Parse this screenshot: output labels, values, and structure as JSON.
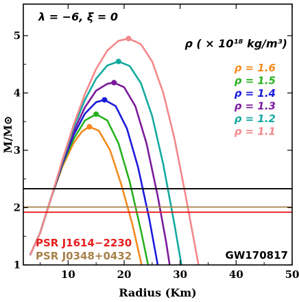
{
  "chart_data": {
    "type": "line",
    "title": "",
    "xlabel": "Radius (Km)",
    "ylabel": "M/M⊙",
    "xlim": [
      2,
      50
    ],
    "ylim": [
      1,
      5.55
    ],
    "x_ticks": [
      10,
      20,
      30,
      40,
      50
    ],
    "y_ticks": [
      1,
      2,
      3,
      4,
      5
    ],
    "parameter_label": "λ = −6, ξ = 0",
    "legend_title": "ρ ( × 10¹⁸ kg/m³)",
    "legend_position": "top-right",
    "series": [
      {
        "name": "ρ = 1.6",
        "color": "#f5891e",
        "max_point": [
          13.8,
          3.41
        ],
        "curve": [
          [
            3.2,
            1.17
          ],
          [
            5.0,
            1.56
          ],
          [
            7.0,
            2.18
          ],
          [
            9.0,
            2.72
          ],
          [
            11.0,
            3.13
          ],
          [
            12.5,
            3.33
          ],
          [
            13.8,
            3.41
          ],
          [
            15.5,
            3.34
          ],
          [
            17.5,
            3.0
          ],
          [
            19.5,
            2.4
          ],
          [
            21.5,
            1.7
          ],
          [
            23.0,
            1.05
          ],
          [
            23.7,
            0.75
          ]
        ]
      },
      {
        "name": "ρ = 1.5",
        "color": "#27b11d",
        "max_point": [
          15.0,
          3.63
        ],
        "curve": [
          [
            3.2,
            1.17
          ],
          [
            5.0,
            1.56
          ],
          [
            7.0,
            2.18
          ],
          [
            9.0,
            2.75
          ],
          [
            11.0,
            3.2
          ],
          [
            13.0,
            3.52
          ],
          [
            15.0,
            3.63
          ],
          [
            17.0,
            3.52
          ],
          [
            19.0,
            3.12
          ],
          [
            21.0,
            2.45
          ],
          [
            23.0,
            1.6
          ],
          [
            24.5,
            0.9
          ],
          [
            25.0,
            0.7
          ]
        ]
      },
      {
        "name": "ρ = 1.4",
        "color": "#1a1adb",
        "max_point": [
          16.5,
          3.88
        ],
        "curve": [
          [
            3.2,
            1.17
          ],
          [
            5.0,
            1.56
          ],
          [
            7.0,
            2.18
          ],
          [
            9.0,
            2.77
          ],
          [
            11.0,
            3.27
          ],
          [
            13.0,
            3.64
          ],
          [
            15.0,
            3.84
          ],
          [
            16.5,
            3.88
          ],
          [
            18.5,
            3.77
          ],
          [
            20.5,
            3.38
          ],
          [
            22.5,
            2.7
          ],
          [
            24.5,
            1.8
          ],
          [
            26.0,
            1.0
          ],
          [
            26.6,
            0.7
          ]
        ]
      },
      {
        "name": "ρ = 1.3",
        "color": "#7b1a9b",
        "max_point": [
          18.2,
          4.18
        ],
        "curve": [
          [
            3.2,
            1.17
          ],
          [
            5.0,
            1.56
          ],
          [
            7.0,
            2.18
          ],
          [
            9.0,
            2.8
          ],
          [
            11.0,
            3.33
          ],
          [
            13.0,
            3.75
          ],
          [
            15.0,
            4.04
          ],
          [
            17.0,
            4.16
          ],
          [
            18.2,
            4.18
          ],
          [
            20.0,
            4.1
          ],
          [
            22.0,
            3.77
          ],
          [
            24.0,
            3.12
          ],
          [
            26.0,
            2.2
          ],
          [
            27.5,
            1.4
          ],
          [
            28.6,
            0.7
          ]
        ]
      },
      {
        "name": "ρ = 1.2",
        "color": "#12a9a0",
        "max_point": [
          19.0,
          4.55
        ],
        "curve": [
          [
            3.2,
            1.17
          ],
          [
            5.0,
            1.56
          ],
          [
            7.0,
            2.18
          ],
          [
            9.0,
            2.82
          ],
          [
            11.0,
            3.4
          ],
          [
            13.0,
            3.88
          ],
          [
            15.0,
            4.25
          ],
          [
            17.0,
            4.48
          ],
          [
            19.0,
            4.55
          ],
          [
            21.0,
            4.47
          ],
          [
            23.0,
            4.17
          ],
          [
            25.0,
            3.6
          ],
          [
            27.0,
            2.75
          ],
          [
            29.0,
            1.7
          ],
          [
            30.5,
            0.85
          ],
          [
            30.8,
            0.7
          ]
        ]
      },
      {
        "name": "ρ = 1.1",
        "color": "#f4878a",
        "max_point": [
          20.8,
          4.95
        ],
        "curve": [
          [
            3.2,
            1.17
          ],
          [
            5.0,
            1.56
          ],
          [
            7.0,
            2.18
          ],
          [
            9.0,
            2.84
          ],
          [
            11.0,
            3.45
          ],
          [
            13.0,
            3.98
          ],
          [
            15.0,
            4.42
          ],
          [
            17.0,
            4.74
          ],
          [
            19.0,
            4.91
          ],
          [
            20.8,
            4.95
          ],
          [
            23.0,
            4.85
          ],
          [
            25.0,
            4.55
          ],
          [
            27.0,
            4.0
          ],
          [
            29.0,
            3.2
          ],
          [
            31.0,
            2.2
          ],
          [
            33.0,
            1.15
          ],
          [
            33.8,
            0.7
          ]
        ]
      }
    ],
    "reference_lines": [
      {
        "label": "GW170817",
        "y": 2.33,
        "color": "#000000"
      },
      {
        "label": "PSR J0348+0432",
        "y": 2.01,
        "color": "#a8804a"
      },
      {
        "label": "PSR J1614−2230",
        "y": 1.92,
        "color": "#e81e1e"
      }
    ],
    "grid": false
  }
}
